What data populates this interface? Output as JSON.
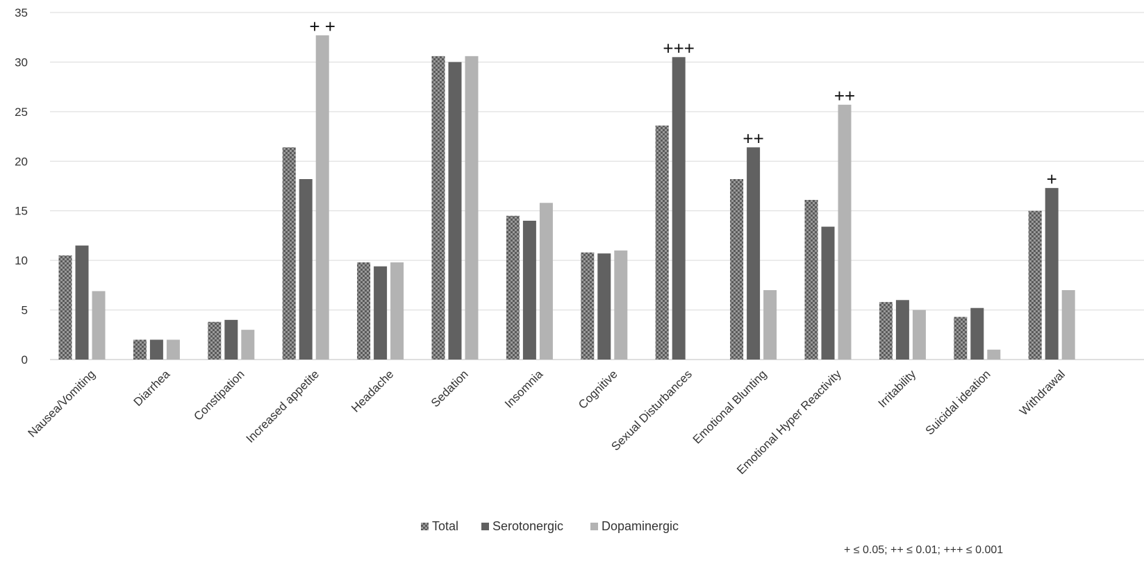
{
  "chart_data": {
    "type": "bar",
    "categories": [
      "Nausea/Vomiting",
      "Diarrhea",
      "Constipation",
      "Increased appetite",
      "Headache",
      "Sedation",
      "Insomnia",
      "Cognitive",
      "Sexual Disturbances",
      "Emotional Blunting",
      "Emotional Hyper Reactivity",
      "Irritability",
      "Suicidal ideation",
      "Withdrawal"
    ],
    "series": [
      {
        "name": "Total",
        "color": "#8c8c8c",
        "pattern": "checker",
        "values": [
          10.5,
          2.0,
          3.8,
          21.4,
          9.8,
          30.6,
          14.5,
          10.8,
          23.6,
          18.2,
          16.1,
          5.8,
          4.3,
          15.0
        ]
      },
      {
        "name": "Serotonergic",
        "color": "#616161",
        "pattern": "solid",
        "values": [
          11.5,
          2.0,
          4.0,
          18.2,
          9.4,
          30.0,
          14.0,
          10.7,
          30.5,
          21.4,
          13.4,
          6.0,
          5.2,
          17.3
        ]
      },
      {
        "name": "Dopaminergic",
        "color": "#b3b3b3",
        "pattern": "solid",
        "values": [
          6.9,
          2.0,
          3.0,
          32.7,
          9.8,
          30.6,
          15.8,
          11.0,
          0,
          7.0,
          25.7,
          5.0,
          1.0,
          7.0
        ]
      }
    ],
    "annotations": [
      {
        "category_index": 3,
        "series_index": 2,
        "text": "+ +"
      },
      {
        "category_index": 8,
        "series_index": 1,
        "text": "+++"
      },
      {
        "category_index": 9,
        "series_index": 1,
        "text": "++"
      },
      {
        "category_index": 10,
        "series_index": 2,
        "text": "++"
      },
      {
        "category_index": 13,
        "series_index": 1,
        "text": "+"
      }
    ],
    "y_ticks": [
      "0",
      "5",
      "10",
      "15",
      "20",
      "25",
      "30",
      "35"
    ],
    "ylim": [
      0,
      35
    ],
    "grid": "horizontal",
    "legend_position": "bottom-center",
    "footnote": "+ ≤ 0.05; ++ ≤ 0.01; +++ ≤ 0.001",
    "title": "",
    "xlabel": "",
    "ylabel": ""
  }
}
